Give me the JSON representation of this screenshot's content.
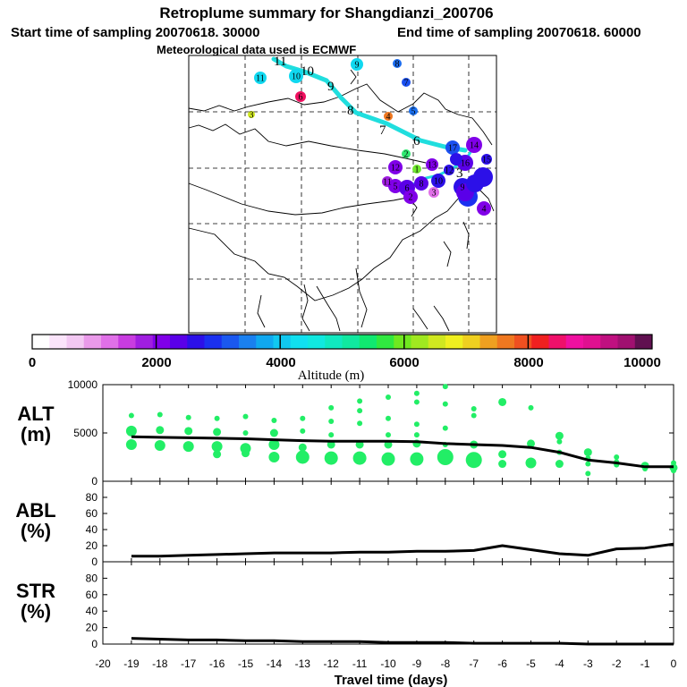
{
  "header": {
    "title": "Retroplume summary for Shangdianzi_200706",
    "start_label": "Start time of sampling 20070618. 30000",
    "end_label": "End time of sampling 20070618. 60000",
    "met_label": "Meteorological data used is ECMWF"
  },
  "colorbar": {
    "ticks": [
      "0",
      "2000",
      "4000",
      "6000",
      "8000",
      "10000"
    ],
    "label": "Altitude (m)",
    "colors": [
      "#ffffff",
      "#fbe4fb",
      "#f3c8f3",
      "#ea9aea",
      "#e070e8",
      "#c83ce0",
      "#a01ee0",
      "#8000e8",
      "#5a00e8",
      "#2c10e8",
      "#1a30f0",
      "#1a58f0",
      "#1a80f0",
      "#10a8f0",
      "#10c8f0",
      "#10e0f0",
      "#10e8e0",
      "#10e8c0",
      "#10e8a0",
      "#10e870",
      "#30e840",
      "#70e820",
      "#a0e820",
      "#d0e820",
      "#f0f020",
      "#f0d020",
      "#f0a020",
      "#f07820",
      "#f05020",
      "#f02020",
      "#f0106a",
      "#f010a0",
      "#e01090",
      "#c01080",
      "#a01070",
      "#601050"
    ]
  },
  "map": {
    "trajectory_labels": [
      "11",
      "10",
      "9",
      "8",
      "7",
      "6",
      "5",
      "4",
      "3",
      "2",
      "1"
    ],
    "plume_labels": [
      "11",
      "10",
      "9",
      "8",
      "7",
      "6",
      "5",
      "4",
      "3",
      "2",
      "1",
      "17",
      "14",
      "15",
      "16",
      "13",
      "12",
      "12",
      "11",
      "5",
      "6",
      "8",
      "10",
      "9",
      "3",
      "2",
      "4"
    ]
  },
  "chart_data": [
    {
      "type": "line",
      "panel": "ALT",
      "ylabel": "ALT\n(m)",
      "yticks": [
        "10000",
        "5000",
        "0"
      ],
      "ylim": [
        0,
        10000
      ],
      "x": [
        -19,
        -18,
        -17,
        -16,
        -15,
        -14,
        -13,
        -12,
        -11,
        -10,
        -9,
        -8,
        -7,
        -6,
        -5,
        -4,
        -3,
        -2,
        -1,
        0
      ],
      "series": [
        {
          "name": "mean altitude",
          "values": [
            4600,
            4550,
            4500,
            4450,
            4400,
            4300,
            4200,
            4150,
            4150,
            4150,
            4100,
            3900,
            3800,
            3700,
            3500,
            3000,
            2200,
            1900,
            1500,
            1500
          ]
        }
      ],
      "clusters": [
        {
          "x": -19,
          "y": [
            6800,
            5200,
            3800
          ],
          "s": [
            1,
            3,
            3
          ]
        },
        {
          "x": -18,
          "y": [
            6900,
            5300,
            3700
          ],
          "s": [
            1,
            2,
            3
          ]
        },
        {
          "x": -17,
          "y": [
            6600,
            5200,
            3600
          ],
          "s": [
            1,
            2,
            3
          ]
        },
        {
          "x": -16,
          "y": [
            6500,
            5100,
            3600,
            2800
          ],
          "s": [
            1,
            2,
            3,
            2
          ]
        },
        {
          "x": -15,
          "y": [
            6700,
            5000,
            3400,
            2900
          ],
          "s": [
            1,
            1,
            3,
            2
          ]
        },
        {
          "x": -14,
          "y": [
            6300,
            5000,
            3800,
            2500
          ],
          "s": [
            1,
            2,
            3,
            3
          ]
        },
        {
          "x": -13,
          "y": [
            6500,
            5200,
            3500,
            2500
          ],
          "s": [
            1,
            1,
            2,
            4
          ]
        },
        {
          "x": -12,
          "y": [
            7600,
            6200,
            4800,
            3800,
            2400
          ],
          "s": [
            1,
            1,
            1,
            2,
            4
          ]
        },
        {
          "x": -11,
          "y": [
            8300,
            7300,
            6000,
            3800,
            2400
          ],
          "s": [
            1,
            1,
            1,
            2,
            4
          ]
        },
        {
          "x": -10,
          "y": [
            8700,
            6500,
            4800,
            3800,
            2300
          ],
          "s": [
            1,
            1,
            1,
            2,
            4
          ]
        },
        {
          "x": -9,
          "y": [
            9100,
            8200,
            5900,
            4800,
            3900,
            2300
          ],
          "s": [
            1,
            1,
            1,
            1,
            2,
            4
          ]
        },
        {
          "x": -8,
          "y": [
            9800,
            8000,
            5500,
            3800,
            2500
          ],
          "s": [
            1,
            1,
            1,
            1,
            5
          ]
        },
        {
          "x": -7,
          "y": [
            7500,
            6800,
            3800,
            2200
          ],
          "s": [
            1,
            1,
            2,
            5
          ]
        },
        {
          "x": -6,
          "y": [
            8200,
            2800,
            1800
          ],
          "s": [
            2,
            2,
            2
          ]
        },
        {
          "x": -5,
          "y": [
            7600,
            3900,
            1900
          ],
          "s": [
            1,
            2,
            3
          ]
        },
        {
          "x": -4,
          "y": [
            4700,
            4100,
            3000,
            1800
          ],
          "s": [
            2,
            1,
            1,
            2
          ]
        },
        {
          "x": -3,
          "y": [
            3000,
            2400,
            1800,
            800
          ],
          "s": [
            2,
            1,
            1,
            1
          ]
        },
        {
          "x": -2,
          "y": [
            2500,
            2000,
            1700
          ],
          "s": [
            1,
            1,
            1
          ]
        },
        {
          "x": -1,
          "y": [
            1600,
            1300
          ],
          "s": [
            2,
            1
          ]
        },
        {
          "x": 0,
          "y": [
            1900,
            1400,
            1100
          ],
          "s": [
            1,
            2,
            1
          ]
        }
      ]
    },
    {
      "type": "line",
      "panel": "ABL",
      "ylabel": "ABL\n(%)",
      "yticks": [
        "80",
        "60",
        "40",
        "20",
        "0"
      ],
      "ylim": [
        0,
        100
      ],
      "x": [
        -19,
        -18,
        -17,
        -16,
        -15,
        -14,
        -13,
        -12,
        -11,
        -10,
        -9,
        -8,
        -7,
        -6,
        -5,
        -4,
        -3,
        -2,
        -1,
        0
      ],
      "series": [
        {
          "name": "ABL fraction",
          "values": [
            7,
            7,
            8,
            9,
            10,
            11,
            11,
            11,
            12,
            12,
            13,
            13,
            14,
            20,
            15,
            10,
            8,
            16,
            17,
            22
          ]
        }
      ]
    },
    {
      "type": "line",
      "panel": "STR",
      "ylabel": "STR\n(%)",
      "yticks": [
        "80",
        "60",
        "40",
        "20",
        "0"
      ],
      "ylim": [
        0,
        100
      ],
      "xlabel": "Travel time (days)",
      "xticks": [
        "-20",
        "-19",
        "-18",
        "-17",
        "-16",
        "-15",
        "-14",
        "-13",
        "-12",
        "-11",
        "-10",
        "-9",
        "-8",
        "-7",
        "-6",
        "-5",
        "-4",
        "-3",
        "-2",
        "-1",
        "0"
      ],
      "x": [
        -19,
        -18,
        -17,
        -16,
        -15,
        -14,
        -13,
        -12,
        -11,
        -10,
        -9,
        -8,
        -7,
        -6,
        -5,
        -4,
        -3,
        -2,
        -1,
        0
      ],
      "series": [
        {
          "name": "stratospheric fraction",
          "values": [
            7,
            6,
            5,
            5,
            4,
            4,
            3,
            3,
            3,
            2,
            2,
            2,
            1,
            1,
            1,
            1,
            0,
            0,
            0,
            0
          ]
        }
      ]
    }
  ]
}
